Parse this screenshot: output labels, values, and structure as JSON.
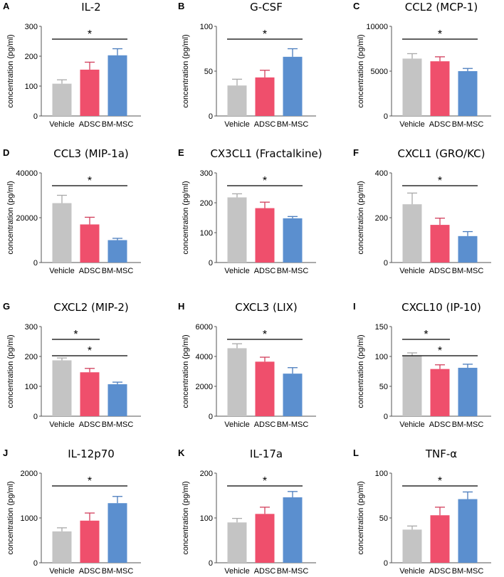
{
  "colors": {
    "vehicle": "#c4c4c4",
    "adsc": "#ef4f6c",
    "bmmsc": "#5b8fcf"
  },
  "ylabel": "concentration (pg/ml)",
  "chart_data": [
    {
      "letter": "A",
      "type": "bar",
      "title": "IL-2",
      "categories": [
        "Vehicle",
        "ADSC",
        "BM-MSC"
      ],
      "values": [
        108,
        155,
        203
      ],
      "errors": [
        13,
        25,
        22
      ],
      "ylim": [
        0,
        300
      ],
      "yticks": [
        "0",
        "100",
        "200",
        "300"
      ],
      "significance": [
        {
          "from": 0,
          "to": 2,
          "label": "*"
        }
      ]
    },
    {
      "letter": "B",
      "type": "bar",
      "title": "G-CSF",
      "categories": [
        "Vehicle",
        "ADSC",
        "BM-MSC"
      ],
      "values": [
        34,
        43,
        66
      ],
      "errors": [
        7,
        8,
        9
      ],
      "ylim": [
        0,
        100
      ],
      "yticks": [
        "0",
        "50",
        "100"
      ],
      "significance": [
        {
          "from": 0,
          "to": 2,
          "label": "*"
        }
      ]
    },
    {
      "letter": "C",
      "type": "bar",
      "title": "CCL2 (MCP-1)",
      "categories": [
        "Vehicle",
        "ADSC",
        "BM-MSC"
      ],
      "values": [
        6400,
        6100,
        5000
      ],
      "errors": [
        550,
        500,
        300
      ],
      "ylim": [
        0,
        10000
      ],
      "yticks": [
        "0",
        "5000",
        "10000"
      ],
      "significance": [
        {
          "from": 0,
          "to": 2,
          "label": "*"
        }
      ]
    },
    {
      "letter": "D",
      "type": "bar",
      "title": "CCL3 (MIP-1a)",
      "categories": [
        "Vehicle",
        "ADSC",
        "BM-MSC"
      ],
      "values": [
        26500,
        17000,
        10000
      ],
      "errors": [
        3500,
        3200,
        800
      ],
      "ylim": [
        0,
        40000
      ],
      "yticks": [
        "0",
        "20000",
        "40000"
      ],
      "significance": [
        {
          "from": 0,
          "to": 2,
          "label": "*"
        }
      ]
    },
    {
      "letter": "E",
      "type": "bar",
      "title": "CX3CL1 (Fractalkine)",
      "categories": [
        "Vehicle",
        "ADSC",
        "BM-MSC"
      ],
      "values": [
        218,
        182,
        148
      ],
      "errors": [
        12,
        20,
        6
      ],
      "ylim": [
        0,
        300
      ],
      "yticks": [
        "0",
        "100",
        "200",
        "300"
      ],
      "significance": [
        {
          "from": 0,
          "to": 2,
          "label": "*"
        }
      ]
    },
    {
      "letter": "F",
      "type": "bar",
      "title": "CXCL1 (GRO/KC)",
      "categories": [
        "Vehicle",
        "ADSC",
        "BM-MSC"
      ],
      "values": [
        260,
        168,
        118
      ],
      "errors": [
        50,
        30,
        20
      ],
      "ylim": [
        0,
        400
      ],
      "yticks": [
        "0",
        "200",
        "400"
      ],
      "significance": [
        {
          "from": 0,
          "to": 2,
          "label": "*"
        }
      ]
    },
    {
      "letter": "G",
      "type": "bar",
      "title": "CXCL2 (MIP-2)",
      "categories": [
        "Vehicle",
        "ADSC",
        "BM-MSC"
      ],
      "values": [
        187,
        147,
        107
      ],
      "errors": [
        8,
        13,
        7
      ],
      "ylim": [
        0,
        300
      ],
      "yticks": [
        "0",
        "100",
        "200",
        "300"
      ],
      "significance": [
        {
          "from": 0,
          "to": 1,
          "label": "*"
        },
        {
          "from": 0,
          "to": 2,
          "label": "*"
        }
      ]
    },
    {
      "letter": "H",
      "type": "bar",
      "title": "CXCL3 (LIX)",
      "categories": [
        "Vehicle",
        "ADSC",
        "BM-MSC"
      ],
      "values": [
        4550,
        3650,
        2850
      ],
      "errors": [
        300,
        300,
        400
      ],
      "ylim": [
        0,
        6000
      ],
      "yticks": [
        "0",
        "2000",
        "4000",
        "6000"
      ],
      "significance": [
        {
          "from": 0,
          "to": 2,
          "label": "*"
        }
      ]
    },
    {
      "letter": "I",
      "type": "bar",
      "title": "CXCL10 (IP-10)",
      "categories": [
        "Vehicle",
        "ADSC",
        "BM-MSC"
      ],
      "values": [
        101,
        79,
        81
      ],
      "errors": [
        5,
        7,
        6
      ],
      "ylim": [
        0,
        150
      ],
      "yticks": [
        "0",
        "50",
        "100",
        "150"
      ],
      "significance": [
        {
          "from": 0,
          "to": 1,
          "label": "*"
        },
        {
          "from": 0,
          "to": 2,
          "label": "*"
        }
      ]
    },
    {
      "letter": "J",
      "type": "bar",
      "title": "IL-12p70",
      "categories": [
        "Vehicle",
        "ADSC",
        "BM-MSC"
      ],
      "values": [
        700,
        940,
        1330
      ],
      "errors": [
        80,
        170,
        150
      ],
      "ylim": [
        0,
        2000
      ],
      "yticks": [
        "0",
        "1000",
        "2000"
      ],
      "significance": [
        {
          "from": 0,
          "to": 2,
          "label": "*"
        }
      ]
    },
    {
      "letter": "K",
      "type": "bar",
      "title": "IL-17a",
      "categories": [
        "Vehicle",
        "ADSC",
        "BM-MSC"
      ],
      "values": [
        90,
        109,
        146
      ],
      "errors": [
        9,
        15,
        13
      ],
      "ylim": [
        0,
        200
      ],
      "yticks": [
        "0",
        "100",
        "200"
      ],
      "significance": [
        {
          "from": 0,
          "to": 2,
          "label": "*"
        }
      ]
    },
    {
      "letter": "L",
      "type": "bar",
      "title": "TNF-α",
      "categories": [
        "Vehicle",
        "ADSC",
        "BM-MSC"
      ],
      "values": [
        37,
        53,
        71
      ],
      "errors": [
        4,
        9,
        8
      ],
      "ylim": [
        0,
        100
      ],
      "yticks": [
        "0",
        "50",
        "100"
      ],
      "significance": [
        {
          "from": 0,
          "to": 2,
          "label": "*"
        }
      ]
    }
  ]
}
